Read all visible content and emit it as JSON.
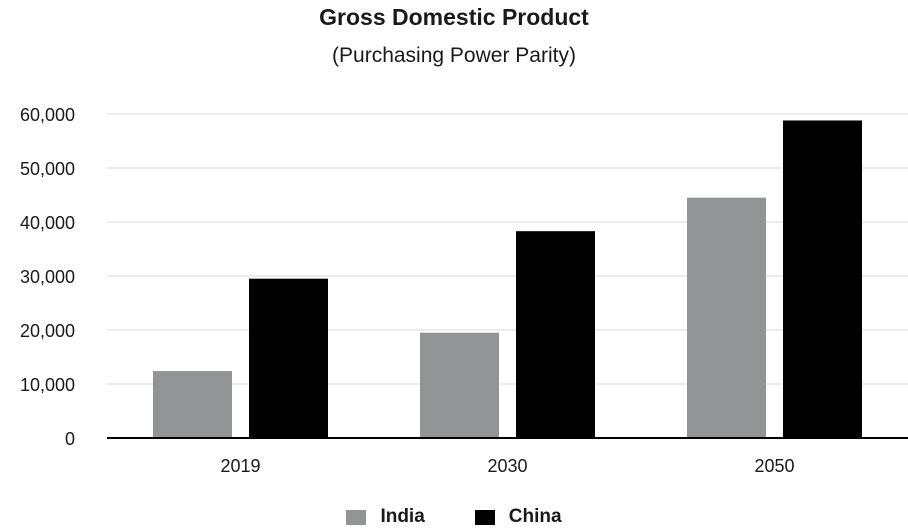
{
  "chart_data": {
    "type": "bar",
    "title": "Gross Domestic Product",
    "subtitle": "(Purchasing Power Parity)",
    "categories": [
      "2019",
      "2030",
      "2050"
    ],
    "series": [
      {
        "name": "India",
        "values": [
          12400,
          19500,
          44500
        ],
        "color": "#939496"
      },
      {
        "name": "China",
        "values": [
          29500,
          38300,
          58800
        ],
        "color": "#000000"
      }
    ],
    "ylim": [
      0,
      60000
    ],
    "yticks": [
      0,
      10000,
      20000,
      30000,
      40000,
      50000,
      60000
    ],
    "ytick_labels": [
      "0",
      "10,000",
      "20,000",
      "30,000",
      "40,000",
      "50,000",
      "60,000"
    ],
    "grid": true,
    "legend_position": "bottom"
  }
}
